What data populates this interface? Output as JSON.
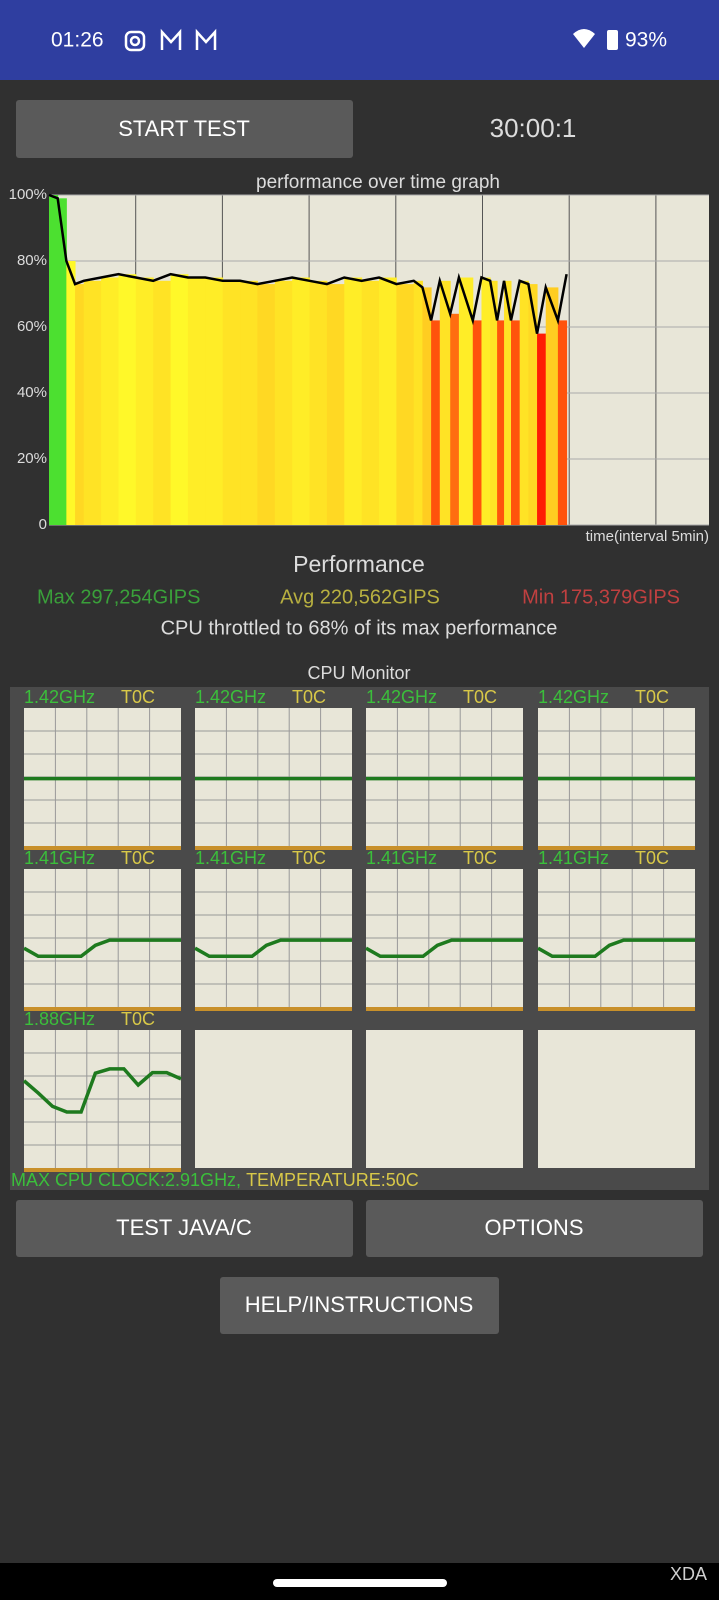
{
  "status_bar": {
    "time": "01:26",
    "battery": "93%"
  },
  "controls": {
    "start_button": "START TEST",
    "timer": "30:00:1"
  },
  "chart_data": {
    "type": "line",
    "title": "performance over time graph",
    "x_label": "time(interval 5min)",
    "x": [
      0,
      0.5,
      1,
      1.5,
      2,
      3,
      4,
      5,
      6,
      7,
      8,
      9,
      10,
      11,
      12,
      13,
      14,
      15,
      16,
      17,
      18,
      19,
      20,
      21,
      21.5,
      22,
      22.5,
      23.1,
      23.6,
      24.4,
      24.9,
      25.4,
      25.8,
      26.2,
      26.6,
      27.1,
      27.6,
      28.1,
      28.6,
      29.3,
      29.8
    ],
    "values": [
      100,
      99,
      80,
      73,
      74,
      75,
      76,
      75,
      74,
      76,
      75,
      75,
      74,
      74,
      73,
      74,
      75,
      74,
      73,
      75,
      74,
      75,
      73,
      74,
      72,
      62,
      74,
      64,
      75,
      62,
      75,
      74,
      62,
      74,
      62,
      74,
      73,
      58,
      72,
      62,
      76
    ],
    "color": "#000000",
    "xlim": [
      0,
      38
    ],
    "ylim": [
      0,
      100
    ],
    "yticks": [
      0,
      {
        "value": 20,
        "label": "20%"
      },
      {
        "value": 40,
        "label": "40%"
      },
      {
        "value": 60,
        "label": "60%"
      },
      {
        "value": 80,
        "label": "80%"
      },
      {
        "value": 100,
        "label": "100%"
      }
    ],
    "grid": true
  },
  "stats": {
    "heading": "Performance",
    "max": "Max 297,254GIPS",
    "avg": "Avg 220,562GIPS",
    "min": "Min 175,379GIPS",
    "throttle": "CPU throttled to 68% of its max performance"
  },
  "cpu_monitor": {
    "title": "CPU Monitor",
    "ylim": [
      0,
      2.91
    ],
    "cpus": [
      {
        "freq": "1.42GHz",
        "temp": "T0C",
        "values": [
          1.42,
          1.42,
          1.42,
          1.42,
          1.42,
          1.42,
          1.42,
          1.42,
          1.42,
          1.42,
          1.42,
          1.42
        ]
      },
      {
        "freq": "1.42GHz",
        "temp": "T0C",
        "values": [
          1.42,
          1.42,
          1.42,
          1.42,
          1.42,
          1.42,
          1.42,
          1.42,
          1.42,
          1.42,
          1.42,
          1.42
        ]
      },
      {
        "freq": "1.42GHz",
        "temp": "T0C",
        "values": [
          1.42,
          1.42,
          1.42,
          1.42,
          1.42,
          1.42,
          1.42,
          1.42,
          1.42,
          1.42,
          1.42,
          1.42
        ]
      },
      {
        "freq": "1.42GHz",
        "temp": "T0C",
        "values": [
          1.42,
          1.42,
          1.42,
          1.42,
          1.42,
          1.42,
          1.42,
          1.42,
          1.42,
          1.42,
          1.42,
          1.42
        ]
      },
      {
        "freq": "1.41GHz",
        "temp": "T0C",
        "values": [
          1.24,
          1.07,
          1.07,
          1.07,
          1.07,
          1.3,
          1.41,
          1.41,
          1.41,
          1.41,
          1.41,
          1.41
        ]
      },
      {
        "freq": "1.41GHz",
        "temp": "T0C",
        "values": [
          1.24,
          1.07,
          1.07,
          1.07,
          1.07,
          1.3,
          1.41,
          1.41,
          1.41,
          1.41,
          1.41,
          1.41
        ]
      },
      {
        "freq": "1.41GHz",
        "temp": "T0C",
        "values": [
          1.24,
          1.07,
          1.07,
          1.07,
          1.07,
          1.3,
          1.41,
          1.41,
          1.41,
          1.41,
          1.41,
          1.41
        ]
      },
      {
        "freq": "1.41GHz",
        "temp": "T0C",
        "values": [
          1.24,
          1.07,
          1.07,
          1.07,
          1.07,
          1.3,
          1.41,
          1.41,
          1.41,
          1.41,
          1.41,
          1.41
        ]
      },
      {
        "freq": "1.88GHz",
        "temp": "T0C",
        "values": [
          1.84,
          1.58,
          1.3,
          1.18,
          1.18,
          2.0,
          2.09,
          2.09,
          1.75,
          2.01,
          2.01,
          1.88
        ]
      }
    ],
    "max_clock": "MAX CPU CLOCK:2.91GHz,",
    "temperature": "TEMPERATURE:50C"
  },
  "buttons": {
    "test": "TEST JAVA/C",
    "options": "OPTIONS",
    "help": "HELP/INSTRUCTIONS"
  },
  "watermark": "XDA"
}
